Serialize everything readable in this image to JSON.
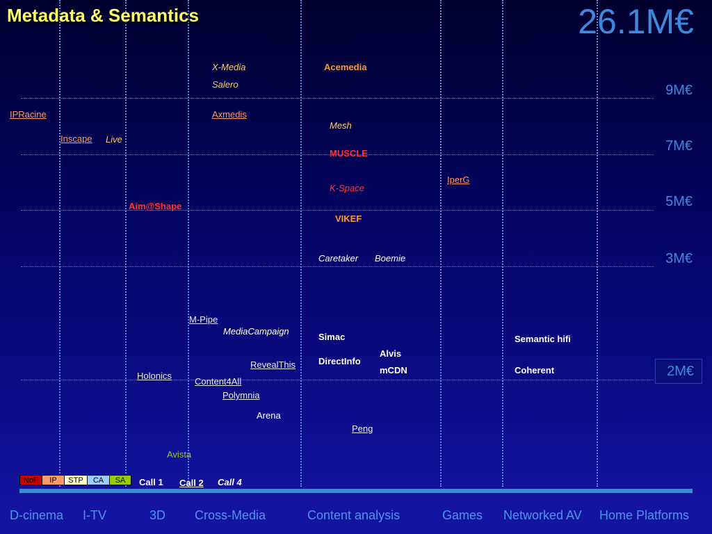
{
  "title": "Metadata & Semantics",
  "total_budget": "26.1M€",
  "budget_levels": [
    "9M€",
    "7M€",
    "5M€",
    "3M€",
    "2M€"
  ],
  "categories": [
    "D-cinema",
    "I-TV",
    "3D",
    "Cross-Media",
    "Content analysis",
    "Games",
    "Networked AV",
    "Home Platforms"
  ],
  "legend": {
    "types": [
      {
        "label": "NoE",
        "color": "#cc0000"
      },
      {
        "label": "IP",
        "color": "#ff9966"
      },
      {
        "label": "STP",
        "color": "#ffffcc"
      },
      {
        "label": "CA",
        "color": "#99ccff"
      },
      {
        "label": "SA",
        "color": "#99cc00"
      }
    ],
    "calls": [
      "Call 1",
      "Call 2",
      "Call 4"
    ]
  },
  "projects": [
    {
      "name": "X-Media",
      "color": "#ffcc66"
    },
    {
      "name": "Acemedia",
      "color": "#ff9933"
    },
    {
      "name": "Salero",
      "color": "#ffcc66"
    },
    {
      "name": "IPRacine",
      "color": "#ff9966"
    },
    {
      "name": "Axmedis",
      "color": "#ff9966"
    },
    {
      "name": "Mesh",
      "color": "#ffcc66"
    },
    {
      "name": "Inscape",
      "color": "#ff9966"
    },
    {
      "name": "Live",
      "color": "#ffcc66"
    },
    {
      "name": "MUSCLE",
      "color": "#ff3333"
    },
    {
      "name": "IperG",
      "color": "#ff9966"
    },
    {
      "name": "K-Space",
      "color": "#ff3333"
    },
    {
      "name": "Aim@Shape",
      "color": "#ff3333"
    },
    {
      "name": "VIKEF",
      "color": "#ff9933"
    },
    {
      "name": "Caretaker",
      "color": "#ffffff"
    },
    {
      "name": "Boemie",
      "color": "#ffffff"
    },
    {
      "name": "M-Pipe",
      "color": "#e6efff"
    },
    {
      "name": "MediaCampaign",
      "color": "#ffffff"
    },
    {
      "name": "Simac",
      "color": "#ffffff"
    },
    {
      "name": "Semantic hifi",
      "color": "#ffffff"
    },
    {
      "name": "Alvis",
      "color": "#ffffff"
    },
    {
      "name": "DirectInfo",
      "color": "#ffffff"
    },
    {
      "name": "RevealThis",
      "color": "#e6efff"
    },
    {
      "name": "mCDN",
      "color": "#ffffff"
    },
    {
      "name": "Coherent",
      "color": "#ffffff"
    },
    {
      "name": "Holonics",
      "color": "#e6efff"
    },
    {
      "name": "Content4All",
      "color": "#e6efff"
    },
    {
      "name": "Polymnia",
      "color": "#e6efff"
    },
    {
      "name": "Arena",
      "color": "#ffffff"
    },
    {
      "name": "Peng",
      "color": "#e6efff"
    },
    {
      "name": "Avista",
      "color": "#99cc00"
    }
  ],
  "colors": {
    "title": "#ffff66",
    "budget": "#4088dc",
    "category": "#4d94e8",
    "baseline": "#3b8ad6"
  }
}
